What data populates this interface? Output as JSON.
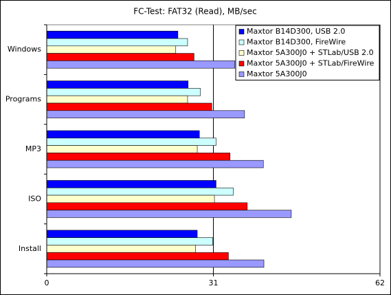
{
  "chart_data": {
    "type": "hbar",
    "title": "FC-Test: FAT32 (Read), MB/sec",
    "categories": [
      "Windows",
      "Programs",
      "MP3",
      "ISO",
      "Install"
    ],
    "series": [
      {
        "name": "Maxtor B14D300, USB 2.0",
        "color": "#0000ff",
        "values": [
          24.4,
          26.3,
          28.4,
          31.5,
          28.0
        ]
      },
      {
        "name": "Maxtor B14D300, FireWire",
        "color": "#ccffff",
        "values": [
          26.2,
          28.6,
          31.5,
          34.7,
          30.9
        ]
      },
      {
        "name": "Maxtor 5A300J0 + STLab/USB 2.0",
        "color": "#ffffcc",
        "values": [
          24.0,
          26.2,
          28.0,
          31.2,
          27.7
        ]
      },
      {
        "name": "Maxtor 5A300J0 + STLab/FireWire",
        "color": "#ff0000",
        "values": [
          27.4,
          30.7,
          34.1,
          37.3,
          33.8
        ]
      },
      {
        "name": "Maxtor 5A300J0",
        "color": "#9999ff",
        "values": [
          35.0,
          36.8,
          40.3,
          45.5,
          40.4
        ]
      }
    ],
    "xlim": [
      0,
      62
    ],
    "xticks": [
      0,
      31,
      62
    ],
    "grid": true,
    "legend": "top-right"
  }
}
